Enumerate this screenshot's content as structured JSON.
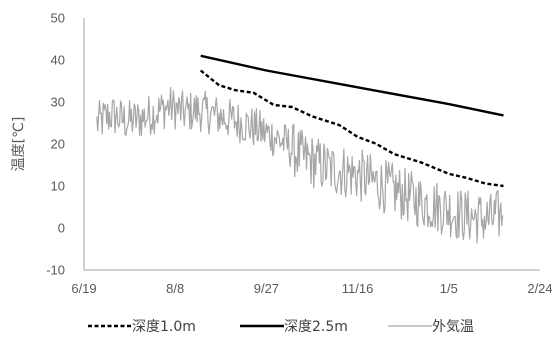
{
  "chart_data": {
    "type": "line",
    "ylabel": "温度[℃]",
    "xlabel": "",
    "ylim": [
      -10,
      50
    ],
    "yticks": [
      -10,
      0,
      10,
      20,
      30,
      40,
      50
    ],
    "xlim": [
      "2020-06-19",
      "2021-02-24"
    ],
    "xticks": [
      "2020-06-19",
      "2020-08-08",
      "2020-09-27",
      "2020-11-16",
      "2021-01-05",
      "2021-02-24"
    ],
    "xtick_labels": [
      "6/19",
      "8/8",
      "9/27",
      "11/16",
      "1/5",
      "2/24"
    ],
    "grid": false,
    "legend": "bottom",
    "series": [
      {
        "name": "深度1.0m",
        "style": "dashed",
        "color": "#000000",
        "points": [
          [
            "2020-08-22",
            37.5
          ],
          [
            "2020-09-01",
            34.0
          ],
          [
            "2020-09-10",
            32.8
          ],
          [
            "2020-09-20",
            32.2
          ],
          [
            "2020-10-01",
            29.3
          ],
          [
            "2020-10-11",
            28.8
          ],
          [
            "2020-10-22",
            26.6
          ],
          [
            "2020-11-06",
            24.5
          ],
          [
            "2020-11-16",
            21.7
          ],
          [
            "2020-11-26",
            20.1
          ],
          [
            "2020-12-06",
            17.6
          ],
          [
            "2020-12-21",
            15.6
          ],
          [
            "2021-01-05",
            12.9
          ],
          [
            "2021-01-15",
            11.9
          ],
          [
            "2021-01-25",
            10.6
          ],
          [
            "2021-02-04",
            10.0
          ]
        ]
      },
      {
        "name": "深度2.5m",
        "style": "solid",
        "color": "#000000",
        "points": [
          [
            "2020-08-22",
            41.0
          ],
          [
            "2020-09-27",
            37.5
          ],
          [
            "2020-11-16",
            33.5
          ],
          [
            "2021-01-05",
            29.5
          ],
          [
            "2021-02-04",
            26.8
          ]
        ]
      },
      {
        "name": "外気温",
        "style": "solid",
        "color": "#a6a6a6",
        "points": [
          [
            "2020-06-26",
            25.0
          ],
          [
            "2020-07-04",
            27.0
          ],
          [
            "2020-07-12",
            25.5
          ],
          [
            "2020-07-20",
            26.0
          ],
          [
            "2020-07-28",
            27.5
          ],
          [
            "2020-08-05",
            29.0
          ],
          [
            "2020-08-13",
            27.5
          ],
          [
            "2020-08-21",
            28.0
          ],
          [
            "2020-08-29",
            27.0
          ],
          [
            "2020-09-06",
            26.0
          ],
          [
            "2020-09-14",
            25.0
          ],
          [
            "2020-09-22",
            23.5
          ],
          [
            "2020-09-30",
            22.0
          ],
          [
            "2020-10-08",
            20.0
          ],
          [
            "2020-10-16",
            17.0
          ],
          [
            "2020-10-24",
            15.5
          ],
          [
            "2020-11-01",
            14.0
          ],
          [
            "2020-11-09",
            13.5
          ],
          [
            "2020-11-17",
            12.5
          ],
          [
            "2020-11-25",
            11.0
          ],
          [
            "2020-12-03",
            9.5
          ],
          [
            "2020-12-11",
            8.0
          ],
          [
            "2020-12-19",
            6.5
          ],
          [
            "2020-12-27",
            5.5
          ],
          [
            "2021-01-04",
            4.5
          ],
          [
            "2021-01-12",
            3.0
          ],
          [
            "2021-01-20",
            2.5
          ],
          [
            "2021-01-28",
            2.0
          ],
          [
            "2021-02-04",
            3.5
          ]
        ],
        "noisy": true
      }
    ]
  }
}
